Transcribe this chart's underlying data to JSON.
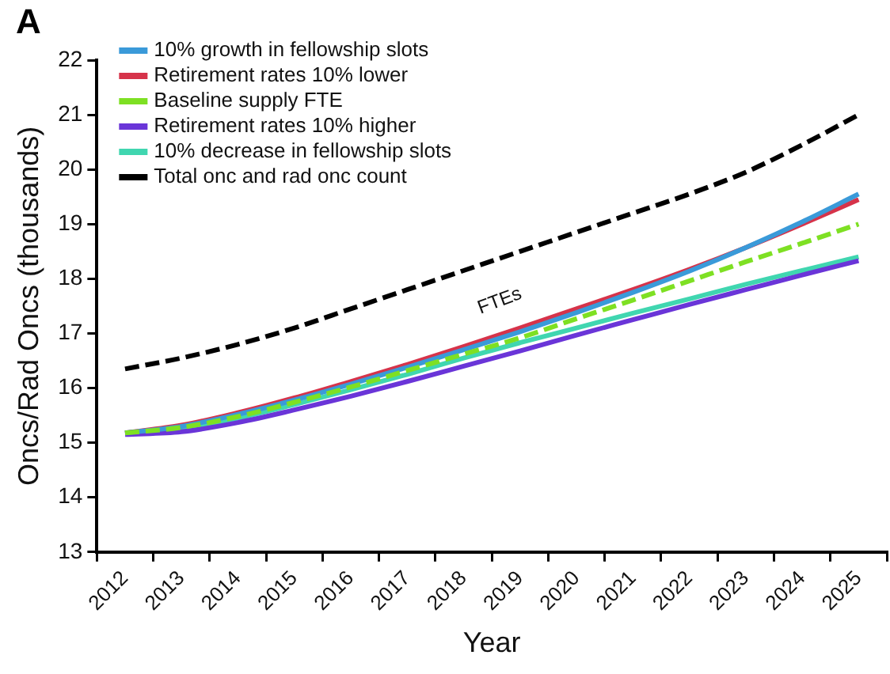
{
  "chart_data": {
    "type": "line",
    "title": "A",
    "xlabel": "Year",
    "ylabel": "Oncs/Rad Oncs (thousands)",
    "categories": [
      "2012",
      "2013",
      "2014",
      "2015",
      "2016",
      "2017",
      "2018",
      "2019",
      "2020",
      "2021",
      "2022",
      "2023",
      "2024",
      "2025"
    ],
    "series": [
      {
        "name": "10% growth in fellowship slots",
        "color": "#3a9ad9",
        "values": [
          15.18,
          15.3,
          15.52,
          15.78,
          16.07,
          16.38,
          16.7,
          17.03,
          17.38,
          17.75,
          18.14,
          18.57,
          19.04,
          19.55
        ]
      },
      {
        "name": "Retirement rates 10% lower",
        "color": "#d6334a",
        "values": [
          15.18,
          15.32,
          15.55,
          15.82,
          16.12,
          16.43,
          16.76,
          17.1,
          17.45,
          17.8,
          18.17,
          18.57,
          19.0,
          19.45
        ]
      },
      {
        "name": "Baseline supply FTE",
        "color": "#7ee023",
        "line_style": "dashed",
        "values": [
          15.18,
          15.28,
          15.48,
          15.74,
          16.02,
          16.32,
          16.62,
          16.92,
          17.27,
          17.61,
          17.96,
          18.31,
          18.65,
          19.0
        ]
      },
      {
        "name": "Retirement rates 10% higher",
        "color": "#6a35d8",
        "values": [
          15.15,
          15.2,
          15.37,
          15.6,
          15.85,
          16.12,
          16.4,
          16.68,
          16.97,
          17.25,
          17.53,
          17.8,
          18.07,
          18.33
        ]
      },
      {
        "name": "10% decrease in fellowship slots",
        "color": "#40d6b0",
        "values": [
          15.18,
          15.26,
          15.45,
          15.7,
          15.97,
          16.25,
          16.55,
          16.83,
          17.1,
          17.37,
          17.63,
          17.9,
          18.15,
          18.4
        ]
      },
      {
        "name": "Total onc and rad onc count",
        "color": "#000000",
        "line_style": "dashed",
        "values": [
          16.35,
          16.55,
          16.8,
          17.1,
          17.45,
          17.8,
          18.15,
          18.5,
          18.85,
          19.2,
          19.55,
          19.95,
          20.45,
          21.0
        ]
      }
    ],
    "ylim": [
      13,
      22
    ],
    "yticks": [
      13,
      14,
      15,
      16,
      17,
      18,
      19,
      20,
      21,
      22
    ],
    "annotations": [
      "FTEs"
    ],
    "legend": "top left",
    "grid": false,
    "marker": "none"
  }
}
